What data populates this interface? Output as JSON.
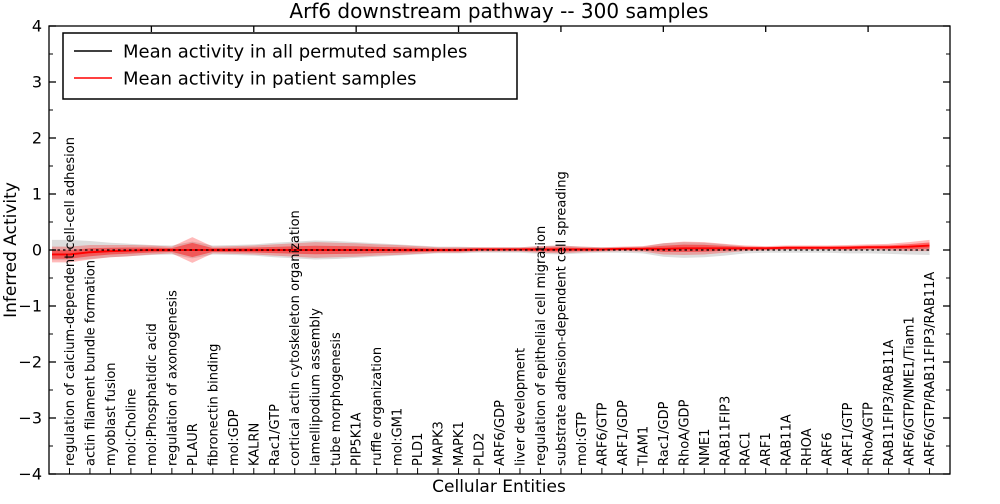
{
  "figure": {
    "title": "Arf6 downstream pathway -- 300 samples",
    "xlabel": "Cellular Entities",
    "ylabel": "Inferred Activity"
  },
  "legend": {
    "items": [
      {
        "label": "Mean activity in all permuted samples",
        "color": "#000000"
      },
      {
        "label": "Mean activity in patient samples",
        "color": "#ff0000"
      }
    ]
  },
  "colors": {
    "permuted_line": "#000000",
    "patient_line": "#ff0000",
    "patient_band": "#ff0000",
    "permuted_band": "#777777",
    "axis": "#000000",
    "background": "#ffffff"
  },
  "chart_data": {
    "type": "line",
    "title": "Arf6 downstream pathway -- 300 samples",
    "xlabel": "Cellular Entities",
    "ylabel": "Inferred Activity",
    "ylim": [
      -4,
      4
    ],
    "ytick_labels": [
      "4",
      "3",
      "2",
      "1",
      "0",
      "−1",
      "−2",
      "−3",
      "−4"
    ],
    "ytick_values": [
      4,
      3,
      2,
      1,
      0,
      -1,
      -2,
      -3,
      -4
    ],
    "ytick_minor_step": 0.5,
    "top_tick_every": 5,
    "grid": false,
    "legend_position": "upper left",
    "categories": [
      "regulation of calcium-dependent cell-cell adhesion",
      "actin filament bundle formation",
      "myoblast fusion",
      "mol:Choline",
      "mol:Phosphatidic acid",
      "regulation of axonogenesis",
      "PLAUR",
      "fibronectin binding",
      "mol:GDP",
      "KALRN",
      "Rac1/GTP",
      "cortical actin cytoskeleton organization",
      "lamellipodium assembly",
      "tube morphogenesis",
      "PIP5K1A",
      "ruffle organization",
      "mol:GM1",
      "PLD1",
      "MAPK3",
      "MAPK1",
      "PLD2",
      "ARF6/GDP",
      "liver development",
      "regulation of epithelial cell migration",
      "substrate adhesion-dependent cell spreading",
      "mol:GTP",
      "ARF6/GTP",
      "ARF1/GDP",
      "TIAM1",
      "Rac1/GDP",
      "RhoA/GDP",
      "NME1",
      "RAB11FIP3",
      "RAC1",
      "ARF1",
      "RAB11A",
      "RHOA",
      "ARF6",
      "ARF1/GTP",
      "RhoA/GTP",
      "RAB11FIP3/RAB11A",
      "ARF6/GTP/NME1/Tiam1",
      "ARF6/GTP/RAB11FIP3/RAB11A"
    ],
    "series": [
      {
        "name": "Mean activity in all permuted samples",
        "color": "#000000",
        "style": "dashed",
        "values": [
          0,
          0,
          0,
          0,
          0,
          0,
          0,
          0,
          0,
          0,
          0,
          0,
          0,
          0,
          0,
          0,
          0,
          0,
          0,
          0,
          0,
          0,
          0,
          0,
          0,
          0,
          0,
          0,
          0,
          0,
          0,
          0,
          0,
          0,
          0,
          0,
          0,
          0,
          0,
          0,
          0,
          0,
          0
        ]
      },
      {
        "name": "Mean activity in patient samples",
        "color": "#ff0000",
        "style": "solid",
        "values": [
          -0.08,
          -0.04,
          -0.02,
          -0.01,
          0,
          0,
          0,
          0,
          0,
          0,
          0,
          0,
          0,
          0,
          0,
          0,
          0,
          0,
          0,
          0,
          0.01,
          0.01,
          0.01,
          0.01,
          0.01,
          0.01,
          0.01,
          0.02,
          0.02,
          0.02,
          0.03,
          0.03,
          0.03,
          0.03,
          0.03,
          0.04,
          0.04,
          0.04,
          0.04,
          0.05,
          0.05,
          0.06,
          0.08
        ]
      }
    ],
    "bands": [
      {
        "name": "permuted-spread",
        "color": "#777777",
        "opacity": 0.25,
        "center_series": 0,
        "halfwidths": [
          0.18,
          0.16,
          0.13,
          0.11,
          0.09,
          0.08,
          0.15,
          0.08,
          0.09,
          0.1,
          0.13,
          0.15,
          0.17,
          0.16,
          0.14,
          0.12,
          0.1,
          0.08,
          0.06,
          0.06,
          0.05,
          0.05,
          0.05,
          0.07,
          0.08,
          0.06,
          0.05,
          0.05,
          0.06,
          0.12,
          0.14,
          0.13,
          0.1,
          0.06,
          0.05,
          0.05,
          0.05,
          0.05,
          0.06,
          0.06,
          0.07,
          0.08,
          0.09
        ]
      },
      {
        "name": "patient-spread-outer",
        "color": "#ff0000",
        "opacity": 0.27,
        "center_series": 1,
        "halfwidths": [
          0.14,
          0.13,
          0.11,
          0.1,
          0.08,
          0.06,
          0.23,
          0.06,
          0.07,
          0.08,
          0.1,
          0.12,
          0.14,
          0.13,
          0.12,
          0.1,
          0.09,
          0.07,
          0.05,
          0.05,
          0.04,
          0.04,
          0.04,
          0.06,
          0.07,
          0.05,
          0.04,
          0.04,
          0.05,
          0.1,
          0.12,
          0.11,
          0.08,
          0.05,
          0.04,
          0.04,
          0.04,
          0.04,
          0.05,
          0.05,
          0.06,
          0.08,
          0.1
        ]
      },
      {
        "name": "patient-spread-inner",
        "color": "#ff0000",
        "opacity": 0.45,
        "center_series": 1,
        "scale_of_outer": 0.55,
        "halfwidths": [
          0.077,
          0.0715,
          0.0605,
          0.055,
          0.044,
          0.033,
          0.1265,
          0.033,
          0.0385,
          0.044,
          0.055,
          0.066,
          0.077,
          0.0715,
          0.066,
          0.055,
          0.0495,
          0.0385,
          0.0275,
          0.0275,
          0.022,
          0.022,
          0.022,
          0.033,
          0.0385,
          0.0275,
          0.022,
          0.022,
          0.0275,
          0.055,
          0.066,
          0.0605,
          0.044,
          0.0275,
          0.022,
          0.022,
          0.022,
          0.022,
          0.0275,
          0.0275,
          0.033,
          0.044,
          0.055
        ]
      }
    ]
  }
}
